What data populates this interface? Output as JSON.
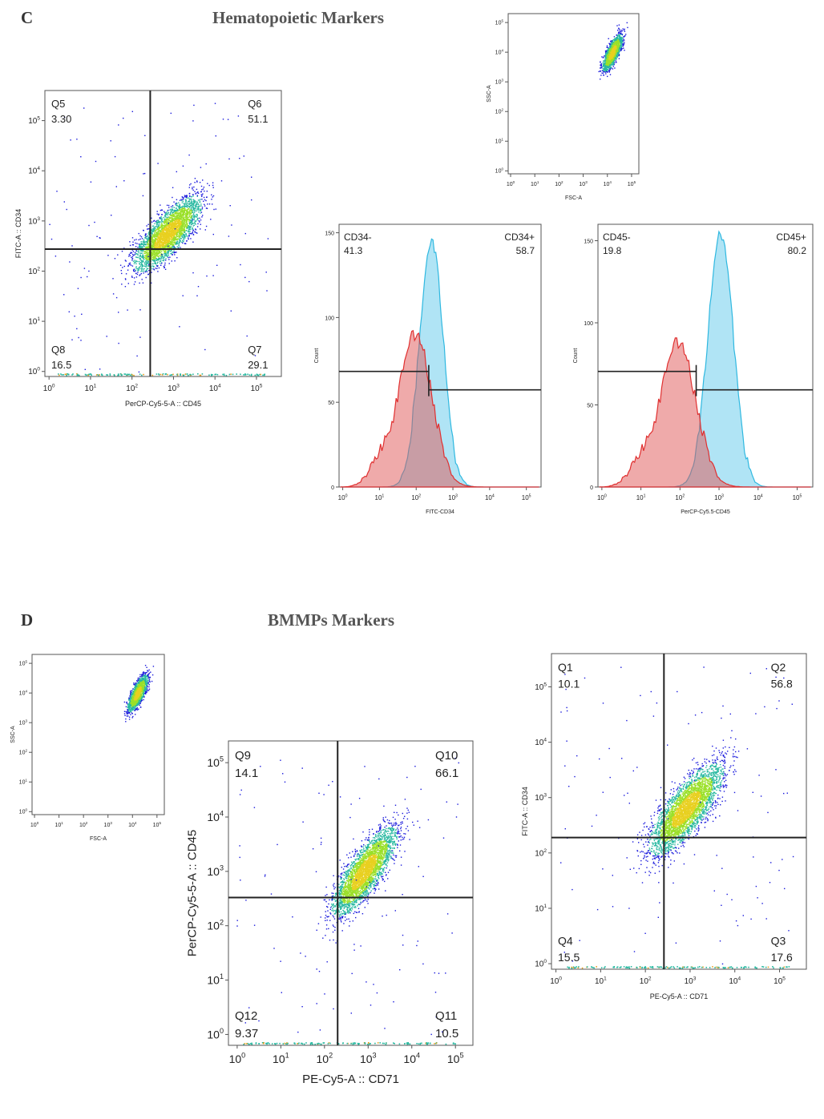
{
  "panels": {
    "C": {
      "letter": "C",
      "title": "Hematopoietic Markers"
    },
    "D": {
      "letter": "D",
      "title": "BMMPs Markers"
    }
  },
  "colors": {
    "red_hist": "#e05555",
    "blue_hist": "#4fc3e8",
    "dot_low": "#1a1adc",
    "dot_mid": "#27b8a0",
    "dot_high": "#9be02a"
  },
  "chart_data": [
    {
      "id": "c_scatter",
      "type": "scatter",
      "xlabel": "PerCP-Cy5-5-A :: CD45",
      "ylabel": "FITC-A :: CD34",
      "x_scale": "log",
      "y_scale": "log",
      "x_ticks": [
        0,
        1,
        2,
        3,
        4,
        5
      ],
      "y_ticks": [
        0,
        1,
        2,
        3,
        4,
        5
      ],
      "gate_x": 275,
      "gate_y": 275,
      "quadrants": [
        {
          "name": "Q5",
          "value": "3.30"
        },
        {
          "name": "Q6",
          "value": "51.1"
        },
        {
          "name": "Q8",
          "value": "16.5"
        },
        {
          "name": "Q7",
          "value": "29.1"
        }
      ]
    },
    {
      "id": "c_fsc",
      "type": "scatter",
      "xlabel": "FSC-A",
      "ylabel": "SSC-A",
      "x_scale": "log",
      "y_scale": "log",
      "x_ticks": [
        0,
        1,
        2,
        3,
        4,
        5
      ],
      "y_ticks": [
        0,
        1,
        2,
        3,
        4,
        5
      ]
    },
    {
      "id": "c_hist34",
      "type": "area",
      "xlabel": "FITC-CD34",
      "ylabel": "Count",
      "x_scale": "log",
      "x_ticks": [
        0,
        1,
        2,
        3,
        4,
        5
      ],
      "y_ticks": [
        0,
        50,
        100,
        150
      ],
      "ylim": [
        0,
        155
      ],
      "gates": [
        {
          "label": "CD34-",
          "value": "41.3"
        },
        {
          "label": "CD34+",
          "value": "58.7"
        }
      ],
      "gate_split": 220,
      "series": [
        {
          "color": "red",
          "peak_x": 95,
          "peak_count": 90
        },
        {
          "color": "blue",
          "peak_x": 260,
          "peak_count": 145
        }
      ]
    },
    {
      "id": "c_hist45",
      "type": "area",
      "xlabel": "PerCP-Cy5.5-CD45",
      "ylabel": "Count",
      "x_scale": "log",
      "x_ticks": [
        0,
        1,
        2,
        3,
        4,
        5
      ],
      "y_ticks": [
        0,
        50,
        100,
        150
      ],
      "ylim": [
        0,
        160
      ],
      "gates": [
        {
          "label": "CD45-",
          "value": "19.8"
        },
        {
          "label": "CD45+",
          "value": "80.2"
        }
      ],
      "gate_split": 260,
      "series": [
        {
          "color": "red",
          "peak_x": 90,
          "peak_count": 88
        },
        {
          "color": "blue",
          "peak_x": 1100,
          "peak_count": 155
        }
      ]
    },
    {
      "id": "d_fsc",
      "type": "scatter",
      "xlabel": "FSC-A",
      "ylabel": "SSC-A",
      "x_scale": "log",
      "y_scale": "log",
      "x_ticks": [
        0,
        1,
        2,
        3,
        4,
        5
      ],
      "y_ticks": [
        0,
        1,
        2,
        3,
        4,
        5
      ]
    },
    {
      "id": "d_scatter45",
      "type": "scatter",
      "xlabel": "PE-Cy5-A :: CD71",
      "ylabel": "PerCP-Cy5-5-A :: CD45",
      "x_scale": "log",
      "y_scale": "log",
      "x_ticks": [
        0,
        1,
        2,
        3,
        4,
        5
      ],
      "y_ticks": [
        0,
        1,
        2,
        3,
        4,
        5
      ],
      "gate_x": 200,
      "gate_y": 330,
      "quadrants": [
        {
          "name": "Q9",
          "value": "14.1"
        },
        {
          "name": "Q10",
          "value": "66.1"
        },
        {
          "name": "Q12",
          "value": "9.37"
        },
        {
          "name": "Q11",
          "value": "10.5"
        }
      ]
    },
    {
      "id": "d_scatter34",
      "type": "scatter",
      "xlabel": "PE-Cy5-A :: CD71",
      "ylabel": "FITC-A :: CD34",
      "x_scale": "log",
      "y_scale": "log",
      "x_ticks": [
        0,
        1,
        2,
        3,
        4,
        5
      ],
      "y_ticks": [
        0,
        1,
        2,
        3,
        4,
        5
      ],
      "gate_x": 260,
      "gate_y": 190,
      "quadrants": [
        {
          "name": "Q1",
          "value": "10.1"
        },
        {
          "name": "Q2",
          "value": "56.8"
        },
        {
          "name": "Q4",
          "value": "15.5"
        },
        {
          "name": "Q3",
          "value": "17.6"
        }
      ]
    }
  ]
}
